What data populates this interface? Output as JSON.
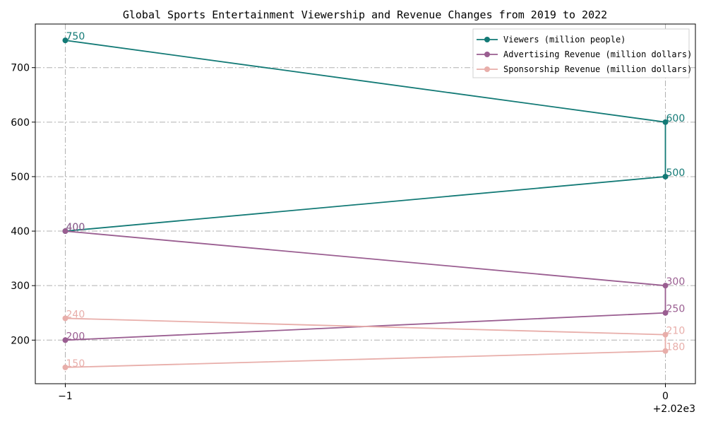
{
  "chart_data": {
    "type": "line",
    "title": "Global Sports Entertainment Viewership and Revenue Changes from 2019 to 2022",
    "xlabel": "",
    "ylabel": "",
    "x_ticks": [
      "−1",
      "0"
    ],
    "x_offset_label": "+2.02e3",
    "y_ticks": [
      "200",
      "300",
      "400",
      "500",
      "600",
      "700"
    ],
    "xlim": [
      2018.95,
      2020.05
    ],
    "ylim": [
      120,
      780
    ],
    "grid": true,
    "legend_position": "top-right",
    "series": [
      {
        "name": "Viewers (million people)",
        "color": "#137a76",
        "points": [
          {
            "x": 2019,
            "y": 750,
            "label": "750"
          },
          {
            "x": 2020,
            "y": 600,
            "label": "600"
          },
          {
            "x": 2020,
            "y": 500,
            "label": "500"
          },
          {
            "x": 2019,
            "y": 400,
            "label": "400"
          }
        ]
      },
      {
        "name": "Advertising Revenue (million dollars)",
        "color": "#9a5e91",
        "points": [
          {
            "x": 2019,
            "y": 400,
            "label": "400"
          },
          {
            "x": 2020,
            "y": 300,
            "label": "300"
          },
          {
            "x": 2020,
            "y": 250,
            "label": "250"
          },
          {
            "x": 2019,
            "y": 200,
            "label": "200"
          }
        ]
      },
      {
        "name": "Sponsorship Revenue (million dollars)",
        "color": "#e8aeaa",
        "points": [
          {
            "x": 2019,
            "y": 240,
            "label": "240"
          },
          {
            "x": 2020,
            "y": 210,
            "label": "210"
          },
          {
            "x": 2020,
            "y": 180,
            "label": "180"
          },
          {
            "x": 2019,
            "y": 150,
            "label": "150"
          }
        ]
      }
    ]
  }
}
